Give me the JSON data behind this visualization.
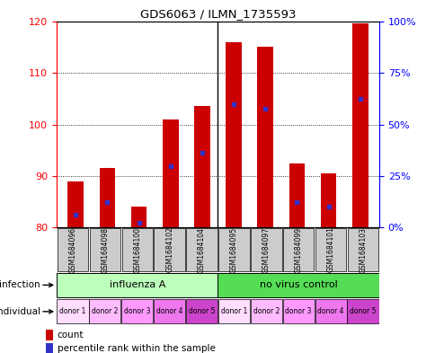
{
  "title": "GDS6063 / ILMN_1735593",
  "samples": [
    "GSM1684096",
    "GSM1684098",
    "GSM1684100",
    "GSM1684102",
    "GSM1684104",
    "GSM1684095",
    "GSM1684097",
    "GSM1684099",
    "GSM1684101",
    "GSM1684103"
  ],
  "bar_heights": [
    89,
    91.5,
    84,
    101,
    103.5,
    116,
    115,
    92.5,
    90.5,
    119.5
  ],
  "blue_marker_y": [
    82.5,
    85,
    81,
    92,
    94.5,
    104,
    103,
    85,
    84,
    105
  ],
  "ymin": 80,
  "ymax": 120,
  "yticks_left": [
    80,
    90,
    100,
    110,
    120
  ],
  "yright_labels": [
    "0%",
    "25%",
    "50%",
    "75%",
    "100%"
  ],
  "bar_color": "#cc0000",
  "blue_color": "#3333cc",
  "bar_width": 0.5,
  "infection_labels": [
    "influenza A",
    "no virus control"
  ],
  "infection_colors": [
    "#bbffbb",
    "#55dd55"
  ],
  "individual_labels": [
    "donor 1",
    "donor 2",
    "donor 3",
    "donor 4",
    "donor 5",
    "donor 1",
    "donor 2",
    "donor 3",
    "donor 4",
    "donor 5"
  ],
  "donor_colors": [
    "#ffddff",
    "#ffbbff",
    "#ff99ff",
    "#ee77ee",
    "#cc44cc"
  ],
  "sample_box_color": "#cccccc",
  "tick_color_left": "red",
  "tick_color_right": "blue",
  "legend_count_color": "#cc0000",
  "legend_percentile_color": "#3333cc"
}
